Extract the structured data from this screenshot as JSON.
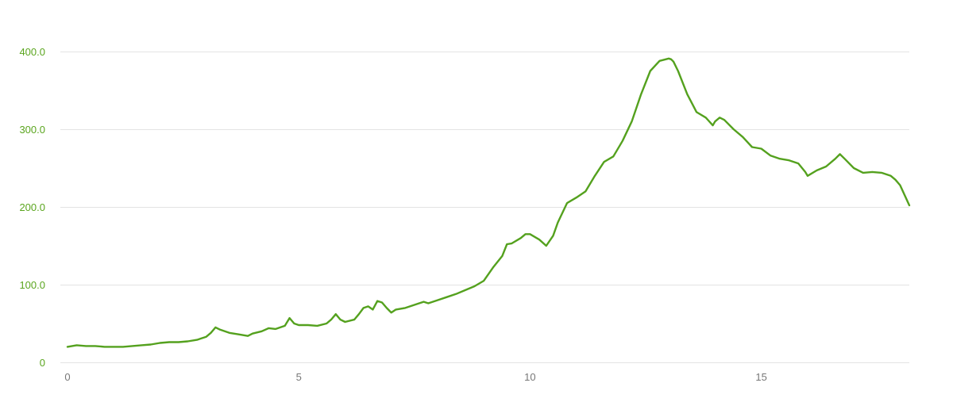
{
  "chart_data": {
    "type": "line",
    "title": "",
    "xlabel": "",
    "ylabel": "",
    "xlim": [
      0,
      18.2
    ],
    "ylim": [
      0,
      400
    ],
    "x_ticks": [
      {
        "value": 0,
        "label": "0"
      },
      {
        "value": 5,
        "label": "5"
      },
      {
        "value": 10,
        "label": "10"
      },
      {
        "value": 15,
        "label": "15"
      }
    ],
    "y_ticks": [
      {
        "value": 0,
        "label": "0"
      },
      {
        "value": 100,
        "label": "100.0"
      },
      {
        "value": 200,
        "label": "200.0"
      },
      {
        "value": 300,
        "label": "300.0"
      },
      {
        "value": 400,
        "label": "400.0"
      }
    ],
    "grid": true,
    "legend": "none",
    "colors": {
      "line": "#54a11e",
      "axis_labels_y": "#5aa51e",
      "axis_labels_x": "#777777",
      "grid": "#e3e3e3"
    },
    "series": [
      {
        "x": [
          0,
          0.2,
          0.4,
          0.6,
          0.8,
          1.0,
          1.2,
          1.4,
          1.6,
          1.8,
          2.0,
          2.2,
          2.4,
          2.6,
          2.8,
          3.0,
          3.1,
          3.2,
          3.3,
          3.5,
          3.7,
          3.9,
          4.0,
          4.2,
          4.35,
          4.5,
          4.7,
          4.8,
          4.9,
          5.0,
          5.2,
          5.4,
          5.6,
          5.7,
          5.8,
          5.9,
          6.0,
          6.2,
          6.3,
          6.4,
          6.5,
          6.6,
          6.7,
          6.8,
          6.9,
          7.0,
          7.1,
          7.3,
          7.5,
          7.7,
          7.8,
          8.0,
          8.2,
          8.4,
          8.6,
          8.8,
          9.0,
          9.2,
          9.4,
          9.5,
          9.6,
          9.8,
          9.9,
          10.0,
          10.2,
          10.35,
          10.5,
          10.6,
          10.8,
          11.0,
          11.2,
          11.4,
          11.6,
          11.8,
          12.0,
          12.2,
          12.4,
          12.6,
          12.8,
          13.0,
          13.05,
          13.1,
          13.2,
          13.4,
          13.6,
          13.8,
          13.95,
          14.0,
          14.1,
          14.2,
          14.4,
          14.6,
          14.8,
          15.0,
          15.2,
          15.4,
          15.6,
          15.8,
          15.95,
          16.0,
          16.2,
          16.4,
          16.6,
          16.7,
          16.8,
          17.0,
          17.2,
          17.4,
          17.6,
          17.8,
          17.9,
          18.0,
          18.2
        ],
        "values": [
          20,
          22,
          21,
          21,
          20,
          20,
          20,
          21,
          22,
          23,
          25,
          26,
          26,
          27,
          29,
          33,
          38,
          45,
          42,
          38,
          36,
          34,
          37,
          40,
          44,
          43,
          47,
          57,
          50,
          48,
          48,
          47,
          50,
          55,
          62,
          55,
          52,
          55,
          62,
          70,
          72,
          68,
          79,
          77,
          70,
          64,
          68,
          70,
          74,
          78,
          76,
          80,
          84,
          88,
          93,
          98,
          105,
          122,
          137,
          152,
          153,
          160,
          165,
          165,
          158,
          150,
          163,
          180,
          205,
          212,
          220,
          240,
          258,
          265,
          285,
          310,
          345,
          375,
          388,
          391,
          390,
          387,
          375,
          345,
          322,
          315,
          305,
          310,
          315,
          312,
          300,
          290,
          277,
          275,
          266,
          262,
          260,
          256,
          245,
          240,
          247,
          252,
          262,
          268,
          262,
          250,
          244,
          245,
          244,
          240,
          235,
          228,
          202
        ]
      }
    ]
  }
}
